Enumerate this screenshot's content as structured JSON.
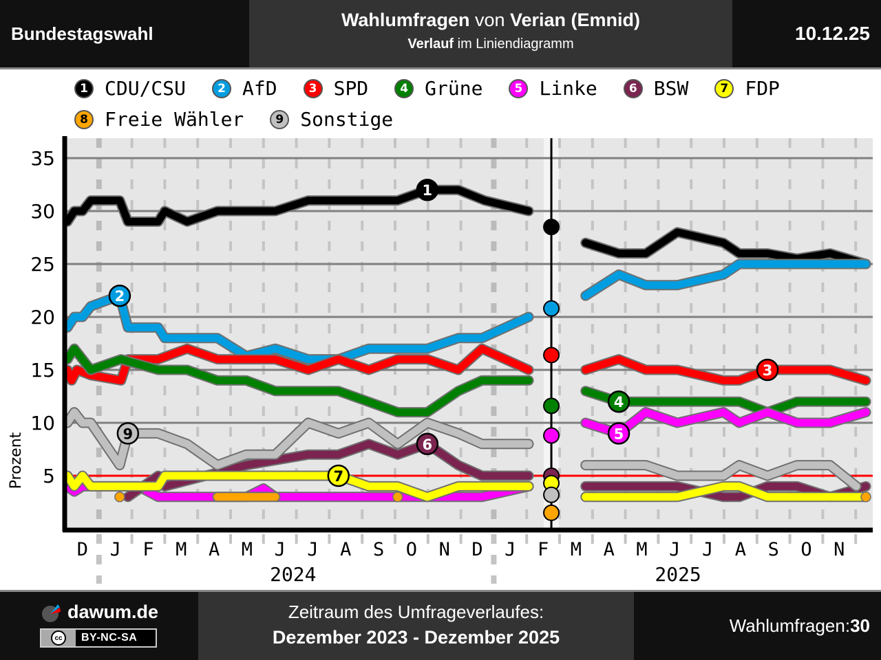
{
  "header": {
    "left_title": "Bundestagswahl",
    "title_bold_1": "Wahlumfragen",
    "title_normal": " von ",
    "title_bold_2": "Verian (Emnid)",
    "subtitle_bold": "Verlauf",
    "subtitle_normal": " im Liniendiagramm",
    "date": "10.12.25"
  },
  "legend": [
    {
      "num": "1",
      "name": "CDU/CSU",
      "color": "#000000",
      "text_color": "#ffffff"
    },
    {
      "num": "2",
      "name": "AfD",
      "color": "#009ee0",
      "text_color": "#ffffff"
    },
    {
      "num": "3",
      "name": "SPD",
      "color": "#ff0000",
      "text_color": "#ffffff"
    },
    {
      "num": "4",
      "name": "Grüne",
      "color": "#008000",
      "text_color": "#ffffff"
    },
    {
      "num": "5",
      "name": "Linke",
      "color": "#ff00ff",
      "text_color": "#ffffff"
    },
    {
      "num": "6",
      "name": "BSW",
      "color": "#7b2450",
      "text_color": "#ffffff"
    },
    {
      "num": "7",
      "name": "FDP",
      "color": "#ffff00",
      "text_color": "#000000"
    },
    {
      "num": "8",
      "name": "Freie Wähler",
      "color": "#ffa500",
      "text_color": "#000000"
    },
    {
      "num": "9",
      "name": "Sonstige",
      "color": "#c0c0c0",
      "text_color": "#000000"
    }
  ],
  "footer": {
    "site": "dawum.de",
    "license_icon": "cc",
    "license": "BY-NC-SA",
    "period_label": "Zeitraum des Umfrageverlaufes:",
    "period": "Dezember 2023 - Dezember 2025",
    "count_label": "Wahlumfragen: ",
    "count": "30"
  },
  "chart_data": {
    "type": "line",
    "title": "Wahlumfragen von Verian (Emnid) – Verlauf",
    "xlabel": "",
    "ylabel": "Prozent",
    "ylim": [
      0,
      37
    ],
    "yticks": [
      5,
      10,
      15,
      20,
      25,
      30,
      35
    ],
    "threshold": 5,
    "grid": true,
    "x_unit": "months since start of Dec 2023",
    "xlim": [
      0,
      24.7
    ],
    "month_labels": [
      "D",
      "J",
      "F",
      "M",
      "A",
      "M",
      "J",
      "J",
      "A",
      "S",
      "O",
      "N",
      "D",
      "J",
      "F",
      "M",
      "A",
      "M",
      "J",
      "J",
      "A",
      "S",
      "O",
      "N"
    ],
    "year_labels": [
      {
        "label": "2024",
        "at": 6.9
      },
      {
        "label": "2025",
        "at": 18.6
      }
    ],
    "year_boundaries": [
      1,
      13
    ],
    "election_marker": {
      "x": 14.75,
      "label": "Bundestagswahl Feb 2025",
      "results": {
        "CDU/CSU": 28.5,
        "AfD": 20.8,
        "SPD": 16.4,
        "Grüne": 11.6,
        "Linke": 8.8,
        "BSW": 5.0,
        "FDP": 4.3,
        "Sonstige": 3.2,
        "Freie Wähler": 1.5
      }
    },
    "series": [
      {
        "name": "CDU/CSU",
        "num": "1",
        "color": "#000000",
        "label_at": 10.98,
        "segments": [
          [
            [
              0.04,
              29
            ],
            [
              0.25,
              30
            ],
            [
              0.5,
              30
            ],
            [
              0.75,
              31
            ],
            [
              1.63,
              31
            ],
            [
              1.88,
              29
            ],
            [
              2.8,
              29
            ],
            [
              3.0,
              30
            ],
            [
              3.68,
              29
            ],
            [
              4.6,
              30
            ],
            [
              6.36,
              30
            ],
            [
              7.36,
              31
            ],
            [
              10.08,
              31
            ],
            [
              10.98,
              32
            ],
            [
              11.92,
              32
            ],
            [
              12.72,
              31
            ],
            [
              14.06,
              30
            ]
          ],
          [
            [
              15.79,
              27
            ],
            [
              16.8,
              26
            ],
            [
              17.62,
              26
            ],
            [
              18.58,
              28
            ],
            [
              19.98,
              27
            ],
            [
              20.46,
              26
            ],
            [
              21.32,
              26
            ],
            [
              22.22,
              25.5
            ],
            [
              23.22,
              26
            ],
            [
              24.31,
              25
            ]
          ]
        ]
      },
      {
        "name": "AfD",
        "num": "2",
        "color": "#009ee0",
        "label_at": 1.63,
        "segments": [
          [
            [
              0.04,
              19
            ],
            [
              0.25,
              20
            ],
            [
              0.5,
              20
            ],
            [
              0.75,
              21
            ],
            [
              1.63,
              22
            ],
            [
              1.88,
              19
            ],
            [
              2.8,
              19
            ],
            [
              3.0,
              18
            ],
            [
              4.6,
              18
            ],
            [
              5.48,
              16.3
            ],
            [
              6.36,
              17
            ],
            [
              7.36,
              16
            ],
            [
              8.28,
              16
            ],
            [
              9.2,
              17
            ],
            [
              10.98,
              17
            ],
            [
              11.92,
              18
            ],
            [
              12.64,
              18
            ],
            [
              14.06,
              20
            ]
          ],
          [
            [
              15.79,
              22
            ],
            [
              16.8,
              24
            ],
            [
              17.62,
              23
            ],
            [
              18.58,
              23
            ],
            [
              19.98,
              24
            ],
            [
              20.46,
              25
            ],
            [
              24.31,
              25
            ]
          ]
        ]
      },
      {
        "name": "SPD",
        "num": "3",
        "color": "#ff0000",
        "label_at": 21.32,
        "segments": [
          [
            [
              0.04,
              15
            ],
            [
              0.17,
              14
            ],
            [
              0.33,
              15
            ],
            [
              0.75,
              14.5
            ],
            [
              1.67,
              14
            ],
            [
              1.88,
              16
            ],
            [
              2.8,
              16
            ],
            [
              3.68,
              17
            ],
            [
              4.6,
              16
            ],
            [
              6.36,
              16
            ],
            [
              7.36,
              15
            ],
            [
              8.28,
              16
            ],
            [
              9.2,
              15
            ],
            [
              10.08,
              16
            ],
            [
              10.98,
              16
            ],
            [
              11.92,
              15
            ],
            [
              12.64,
              17
            ],
            [
              14.06,
              15
            ]
          ],
          [
            [
              15.79,
              15
            ],
            [
              16.8,
              16
            ],
            [
              17.62,
              15
            ],
            [
              18.58,
              15
            ],
            [
              19.98,
              14
            ],
            [
              20.46,
              14
            ],
            [
              21.32,
              15
            ],
            [
              23.22,
              15
            ],
            [
              24.31,
              14
            ]
          ]
        ]
      },
      {
        "name": "Grüne",
        "num": "4",
        "color": "#008000",
        "label_at": 16.8,
        "segments": [
          [
            [
              0.04,
              16
            ],
            [
              0.25,
              17
            ],
            [
              0.75,
              15
            ],
            [
              1.67,
              16
            ],
            [
              2.8,
              15
            ],
            [
              3.68,
              15
            ],
            [
              4.6,
              14
            ],
            [
              5.48,
              14
            ],
            [
              6.36,
              13
            ],
            [
              8.28,
              13
            ],
            [
              10.08,
              11
            ],
            [
              10.98,
              11
            ],
            [
              11.92,
              13
            ],
            [
              12.64,
              14
            ],
            [
              14.06,
              14
            ]
          ],
          [
            [
              15.79,
              13
            ],
            [
              16.8,
              12
            ],
            [
              17.62,
              12
            ],
            [
              20.46,
              12
            ],
            [
              21.32,
              11
            ],
            [
              22.22,
              12
            ],
            [
              24.31,
              12
            ]
          ]
        ]
      },
      {
        "name": "Linke",
        "num": "5",
        "color": "#ff00ff",
        "label_at": 16.8,
        "segments": [
          [
            [
              0.04,
              4
            ],
            [
              0.25,
              3.5
            ],
            [
              0.5,
              4
            ],
            [
              2.2,
              4
            ],
            [
              2.8,
              3
            ],
            [
              5.48,
              3
            ],
            [
              6.0,
              3.8
            ],
            [
              6.36,
              3
            ],
            [
              12.64,
              3
            ],
            [
              14.06,
              4
            ]
          ],
          [
            [
              15.79,
              10
            ],
            [
              16.8,
              9
            ],
            [
              17.62,
              11
            ],
            [
              18.58,
              10
            ],
            [
              19.98,
              11
            ],
            [
              20.46,
              10
            ],
            [
              21.32,
              11
            ],
            [
              22.22,
              10
            ],
            [
              23.22,
              10
            ],
            [
              24.31,
              11
            ]
          ]
        ]
      },
      {
        "name": "BSW",
        "num": "6",
        "color": "#7b2450",
        "label_at": 10.98,
        "segments": [
          [
            [
              1.88,
              3
            ],
            [
              2.8,
              5
            ],
            [
              3.0,
              4
            ],
            [
              5.48,
              6
            ],
            [
              7.36,
              7
            ],
            [
              8.28,
              7
            ],
            [
              9.2,
              8
            ],
            [
              10.08,
              7
            ],
            [
              10.98,
              8
            ],
            [
              11.92,
              6
            ],
            [
              12.64,
              5
            ],
            [
              14.06,
              5
            ]
          ],
          [
            [
              15.79,
              4
            ],
            [
              18.58,
              4
            ],
            [
              19.98,
              3
            ],
            [
              20.46,
              3
            ],
            [
              21.32,
              4
            ],
            [
              22.22,
              4
            ],
            [
              23.22,
              3
            ],
            [
              24.31,
              4
            ]
          ]
        ]
      },
      {
        "name": "FDP",
        "num": "7",
        "color": "#ffff00",
        "label_at": 8.28,
        "segments": [
          [
            [
              0.04,
              5
            ],
            [
              0.25,
              4
            ],
            [
              0.5,
              5
            ],
            [
              0.75,
              4
            ],
            [
              2.8,
              4
            ],
            [
              3.0,
              5
            ],
            [
              8.28,
              5
            ],
            [
              9.2,
              4
            ],
            [
              10.08,
              4
            ],
            [
              10.98,
              3
            ],
            [
              11.92,
              4
            ],
            [
              14.06,
              4
            ]
          ],
          [
            [
              15.79,
              3
            ],
            [
              18.58,
              3
            ],
            [
              19.98,
              4
            ],
            [
              20.46,
              4
            ],
            [
              21.32,
              3
            ],
            [
              24.31,
              3
            ]
          ]
        ]
      },
      {
        "name": "Freie Wähler",
        "num": "8",
        "color": "#ffa500",
        "label_at": 5.48,
        "segments": [
          [
            [
              1.63,
              3
            ]
          ],
          [
            [
              4.6,
              3
            ],
            [
              6.36,
              3
            ]
          ],
          [
            [
              10.08,
              3
            ]
          ],
          [
            [
              24.31,
              3
            ]
          ]
        ]
      },
      {
        "name": "Sonstige",
        "num": "9",
        "color": "#c0c0c0",
        "label_at": 1.88,
        "segments": [
          [
            [
              0.04,
              10
            ],
            [
              0.25,
              11
            ],
            [
              0.5,
              10
            ],
            [
              0.75,
              10
            ],
            [
              1.63,
              6
            ],
            [
              1.88,
              9
            ],
            [
              2.8,
              9
            ],
            [
              3.68,
              8
            ],
            [
              4.6,
              6
            ],
            [
              5.48,
              7
            ],
            [
              6.36,
              7
            ],
            [
              7.36,
              10
            ],
            [
              8.28,
              9
            ],
            [
              9.2,
              10
            ],
            [
              10.08,
              8
            ],
            [
              10.98,
              10
            ],
            [
              11.92,
              9
            ],
            [
              12.64,
              8
            ],
            [
              14.06,
              8
            ]
          ],
          [
            [
              15.79,
              6
            ],
            [
              17.62,
              6
            ],
            [
              18.58,
              5
            ],
            [
              19.98,
              5
            ],
            [
              20.46,
              6
            ],
            [
              21.32,
              5
            ],
            [
              22.22,
              6
            ],
            [
              23.22,
              6
            ],
            [
              24.02,
              4
            ]
          ]
        ]
      }
    ]
  }
}
